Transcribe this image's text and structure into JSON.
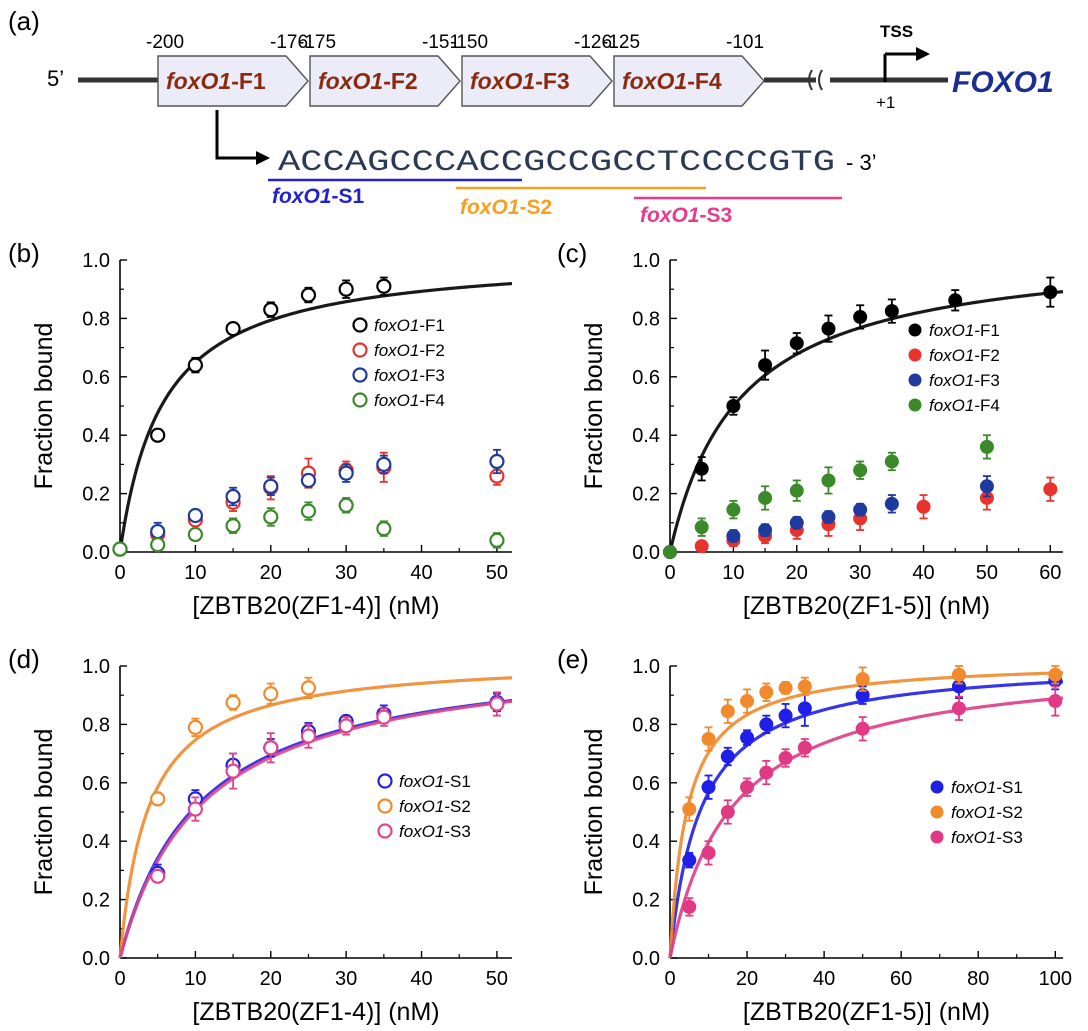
{
  "diagram": {
    "panel_label": "(a)",
    "five_prime": "5’",
    "gene_name": "FOXO1",
    "tss_label": "TSS",
    "plus_one": "+1",
    "fragments": [
      {
        "prefix": "foxO1",
        "suffix": "-F1",
        "start": "-200",
        "end": "-176"
      },
      {
        "prefix": "foxO1",
        "suffix": "-F2",
        "start": "-175",
        "end": "-151"
      },
      {
        "prefix": "foxO1",
        "suffix": "-F3",
        "start": "-150",
        "end": "-126"
      },
      {
        "prefix": "foxO1",
        "suffix": "-F4",
        "start": "-125",
        "end": "-101"
      }
    ],
    "sequence": "ACCAGCCCACCGCCGCCTCCCCGTG",
    "three_prime": "- 3’",
    "subfragments": [
      {
        "prefix": "foxO1",
        "suffix": "-S1",
        "color": "#2222cc"
      },
      {
        "prefix": "foxO1",
        "suffix": "-S2",
        "color": "#f5a023"
      },
      {
        "prefix": "foxO1",
        "suffix": "-S3",
        "color": "#e8398e"
      }
    ],
    "colors": {
      "fragment_fill": "#ececf8",
      "fragment_text": "#8b2a10",
      "gene": "#1c2e8f",
      "dna": "#333333",
      "sequence": "#2a3a55"
    }
  },
  "chart_data": [
    {
      "panel_label": "(b)",
      "type": "scatter",
      "marker": "open",
      "xlabel": "[ZBTB20(ZF1-4)] (nM)",
      "ylabel": "Fraction bound",
      "xlim": [
        0,
        52
      ],
      "ylim": [
        0,
        1.0
      ],
      "xticks": [
        0,
        10,
        20,
        30,
        40,
        50
      ],
      "yticks": [
        0.0,
        0.2,
        0.4,
        0.6,
        0.8,
        1.0
      ],
      "legend_position": "right-middle",
      "series": [
        {
          "name_prefix": "foxO1",
          "name_suffix": "-F1",
          "color": "#000000",
          "points": [
            [
              0,
              0.01
            ],
            [
              5,
              0.4
            ],
            [
              10,
              0.64
            ],
            [
              15,
              0.765
            ],
            [
              20,
              0.83
            ],
            [
              25,
              0.88
            ],
            [
              30,
              0.9
            ],
            [
              35,
              0.91
            ]
          ],
          "errors": [
            0,
            0.02,
            0.025,
            0.015,
            0.025,
            0.025,
            0.03,
            0.03
          ],
          "fit": {
            "kd": 5.7,
            "bmax": 1.02
          }
        },
        {
          "name_prefix": "foxO1",
          "name_suffix": "-F2",
          "color": "#e8332d",
          "points": [
            [
              5,
              0.06
            ],
            [
              10,
              0.11
            ],
            [
              15,
              0.17
            ],
            [
              20,
              0.22
            ],
            [
              25,
              0.27
            ],
            [
              30,
              0.28
            ],
            [
              35,
              0.29
            ],
            [
              50,
              0.26
            ]
          ],
          "errors": [
            0.02,
            0.02,
            0.03,
            0.04,
            0.05,
            0.03,
            0.05,
            0.03
          ]
        },
        {
          "name_prefix": "foxO1",
          "name_suffix": "-F3",
          "color": "#1f3a9c",
          "points": [
            [
              5,
              0.07
            ],
            [
              10,
              0.125
            ],
            [
              15,
              0.19
            ],
            [
              20,
              0.225
            ],
            [
              25,
              0.245
            ],
            [
              30,
              0.27
            ],
            [
              35,
              0.3
            ],
            [
              50,
              0.31
            ]
          ],
          "errors": [
            0.03,
            0.02,
            0.03,
            0.03,
            0.02,
            0.03,
            0.03,
            0.04
          ]
        },
        {
          "name_prefix": "foxO1",
          "name_suffix": "-F4",
          "color": "#3a8a2a",
          "points": [
            [
              0,
              0.01
            ],
            [
              5,
              0.025
            ],
            [
              10,
              0.06
            ],
            [
              15,
              0.09
            ],
            [
              20,
              0.12
            ],
            [
              25,
              0.14
            ],
            [
              30,
              0.16
            ],
            [
              35,
              0.08
            ],
            [
              50,
              0.04
            ]
          ],
          "errors": [
            0,
            0.01,
            0.02,
            0.025,
            0.03,
            0.03,
            0.025,
            0.025,
            0.025
          ]
        }
      ]
    },
    {
      "panel_label": "(c)",
      "type": "scatter",
      "marker": "filled",
      "xlabel": "[ZBTB20(ZF1-5)] (nM)",
      "ylabel": "Fraction bound",
      "xlim": [
        0,
        62
      ],
      "ylim": [
        0,
        1.0
      ],
      "xticks": [
        0,
        10,
        20,
        30,
        40,
        50,
        60
      ],
      "yticks": [
        0.0,
        0.2,
        0.4,
        0.6,
        0.8,
        1.0
      ],
      "legend_position": "right-middle",
      "series": [
        {
          "name_prefix": "foxO1",
          "name_suffix": "-F1",
          "color": "#000000",
          "points": [
            [
              0,
              0.0
            ],
            [
              5,
              0.285
            ],
            [
              10,
              0.5
            ],
            [
              15,
              0.64
            ],
            [
              20,
              0.715
            ],
            [
              25,
              0.765
            ],
            [
              30,
              0.805
            ],
            [
              35,
              0.825
            ],
            [
              45,
              0.862
            ],
            [
              60,
              0.89
            ]
          ],
          "errors": [
            0,
            0.04,
            0.03,
            0.05,
            0.035,
            0.045,
            0.04,
            0.04,
            0.035,
            0.05
          ],
          "fit": {
            "kd": 11.0,
            "bmax": 1.05
          }
        },
        {
          "name_prefix": "foxO1",
          "name_suffix": "-F2",
          "color": "#e8332d",
          "points": [
            [
              5,
              0.02
            ],
            [
              10,
              0.04
            ],
            [
              15,
              0.055
            ],
            [
              20,
              0.075
            ],
            [
              25,
              0.095
            ],
            [
              30,
              0.115
            ],
            [
              40,
              0.155
            ],
            [
              50,
              0.185
            ],
            [
              60,
              0.215
            ]
          ],
          "errors": [
            0.01,
            0.02,
            0.025,
            0.03,
            0.04,
            0.04,
            0.04,
            0.04,
            0.04
          ]
        },
        {
          "name_prefix": "foxO1",
          "name_suffix": "-F3",
          "color": "#1f3a9c",
          "points": [
            [
              10,
              0.055
            ],
            [
              15,
              0.075
            ],
            [
              20,
              0.1
            ],
            [
              25,
              0.12
            ],
            [
              30,
              0.145
            ],
            [
              35,
              0.165
            ],
            [
              50,
              0.225
            ]
          ],
          "errors": [
            0.02,
            0.02,
            0.02,
            0.02,
            0.02,
            0.03,
            0.035
          ]
        },
        {
          "name_prefix": "foxO1",
          "name_suffix": "-F4",
          "color": "#3a8a2a",
          "points": [
            [
              0,
              0.0
            ],
            [
              5,
              0.085
            ],
            [
              10,
              0.145
            ],
            [
              15,
              0.185
            ],
            [
              20,
              0.21
            ],
            [
              25,
              0.245
            ],
            [
              30,
              0.28
            ],
            [
              35,
              0.31
            ],
            [
              50,
              0.36
            ]
          ],
          "errors": [
            0,
            0.03,
            0.03,
            0.04,
            0.035,
            0.045,
            0.03,
            0.03,
            0.04
          ]
        }
      ]
    },
    {
      "panel_label": "(d)",
      "type": "scatter",
      "marker": "open",
      "xlabel": "[ZBTB20(ZF1-4)] (nM)",
      "ylabel": "Fraction bound",
      "xlim": [
        0,
        52
      ],
      "ylim": [
        0,
        1.0
      ],
      "xticks": [
        0,
        10,
        20,
        30,
        40,
        50
      ],
      "yticks": [
        0.0,
        0.2,
        0.4,
        0.6,
        0.8,
        1.0
      ],
      "legend_position": "right-middle",
      "series": [
        {
          "name_prefix": "foxO1",
          "name_suffix": "-S1",
          "color": "#2222e0",
          "points": [
            [
              5,
              0.29
            ],
            [
              10,
              0.545
            ],
            [
              15,
              0.66
            ],
            [
              20,
              0.72
            ],
            [
              25,
              0.775
            ],
            [
              30,
              0.81
            ],
            [
              35,
              0.835
            ],
            [
              50,
              0.875
            ]
          ],
          "errors": [
            0.03,
            0.03,
            0.04,
            0.03,
            0.03,
            0.02,
            0.03,
            0.03
          ],
          "fit": {
            "kd": 10.5,
            "bmax": 1.06
          }
        },
        {
          "name_prefix": "foxO1",
          "name_suffix": "-S2",
          "color": "#f08a2c",
          "points": [
            [
              5,
              0.545
            ],
            [
              10,
              0.79
            ],
            [
              15,
              0.875
            ],
            [
              20,
              0.905
            ],
            [
              25,
              0.925
            ]
          ],
          "errors": [
            0.015,
            0.03,
            0.025,
            0.035,
            0.035
          ],
          "fit": {
            "kd": 3.8,
            "bmax": 1.03
          }
        },
        {
          "name_prefix": "foxO1",
          "name_suffix": "-S3",
          "color": "#e0458e",
          "points": [
            [
              5,
              0.28
            ],
            [
              10,
              0.51
            ],
            [
              15,
              0.64
            ],
            [
              20,
              0.72
            ],
            [
              25,
              0.76
            ],
            [
              30,
              0.795
            ],
            [
              35,
              0.825
            ],
            [
              50,
              0.87
            ]
          ],
          "errors": [
            0.02,
            0.04,
            0.06,
            0.05,
            0.04,
            0.03,
            0.03,
            0.04
          ],
          "fit": {
            "kd": 11.0,
            "bmax": 1.065
          }
        }
      ]
    },
    {
      "panel_label": "(e)",
      "type": "scatter",
      "marker": "filled",
      "xlabel": "[ZBTB20(ZF1-5)] (nM)",
      "ylabel": "Fraction bound",
      "xlim": [
        0,
        102
      ],
      "ylim": [
        0,
        1.0
      ],
      "xticks": [
        0,
        20,
        40,
        60,
        80,
        100
      ],
      "yticks": [
        0.0,
        0.2,
        0.4,
        0.6,
        0.8,
        1.0
      ],
      "legend_position": "right-middle",
      "series": [
        {
          "name_prefix": "foxO1",
          "name_suffix": "-S1",
          "color": "#1f1fe8",
          "points": [
            [
              5,
              0.335
            ],
            [
              10,
              0.585
            ],
            [
              15,
              0.69
            ],
            [
              20,
              0.755
            ],
            [
              25,
              0.8
            ],
            [
              30,
              0.83
            ],
            [
              35,
              0.855
            ],
            [
              50,
              0.9
            ],
            [
              75,
              0.93
            ],
            [
              100,
              0.95
            ]
          ],
          "errors": [
            0.025,
            0.04,
            0.03,
            0.025,
            0.03,
            0.04,
            0.06,
            0.03,
            0.04,
            0.03
          ],
          "fit": {
            "kd": 8.0,
            "bmax": 1.02
          }
        },
        {
          "name_prefix": "foxO1",
          "name_suffix": "-S2",
          "color": "#f08a2c",
          "points": [
            [
              5,
              0.51
            ],
            [
              10,
              0.75
            ],
            [
              15,
              0.845
            ],
            [
              20,
              0.88
            ],
            [
              25,
              0.91
            ],
            [
              30,
              0.925
            ],
            [
              35,
              0.93
            ],
            [
              50,
              0.955
            ],
            [
              75,
              0.97
            ],
            [
              100,
              0.97
            ]
          ],
          "errors": [
            0.04,
            0.04,
            0.04,
            0.04,
            0.03,
            0.02,
            0.03,
            0.04,
            0.03,
            0.03
          ],
          "fit": {
            "kd": 4.5,
            "bmax": 1.02
          }
        },
        {
          "name_prefix": "foxO1",
          "name_suffix": "-S3",
          "color": "#e03a85",
          "points": [
            [
              5,
              0.175
            ],
            [
              10,
              0.36
            ],
            [
              15,
              0.5
            ],
            [
              20,
              0.585
            ],
            [
              25,
              0.635
            ],
            [
              30,
              0.685
            ],
            [
              35,
              0.72
            ],
            [
              50,
              0.785
            ],
            [
              75,
              0.855
            ],
            [
              100,
              0.88
            ]
          ],
          "errors": [
            0.03,
            0.04,
            0.04,
            0.03,
            0.04,
            0.03,
            0.03,
            0.04,
            0.04,
            0.05
          ],
          "fit": {
            "kd": 16.0,
            "bmax": 1.03
          }
        }
      ]
    }
  ]
}
